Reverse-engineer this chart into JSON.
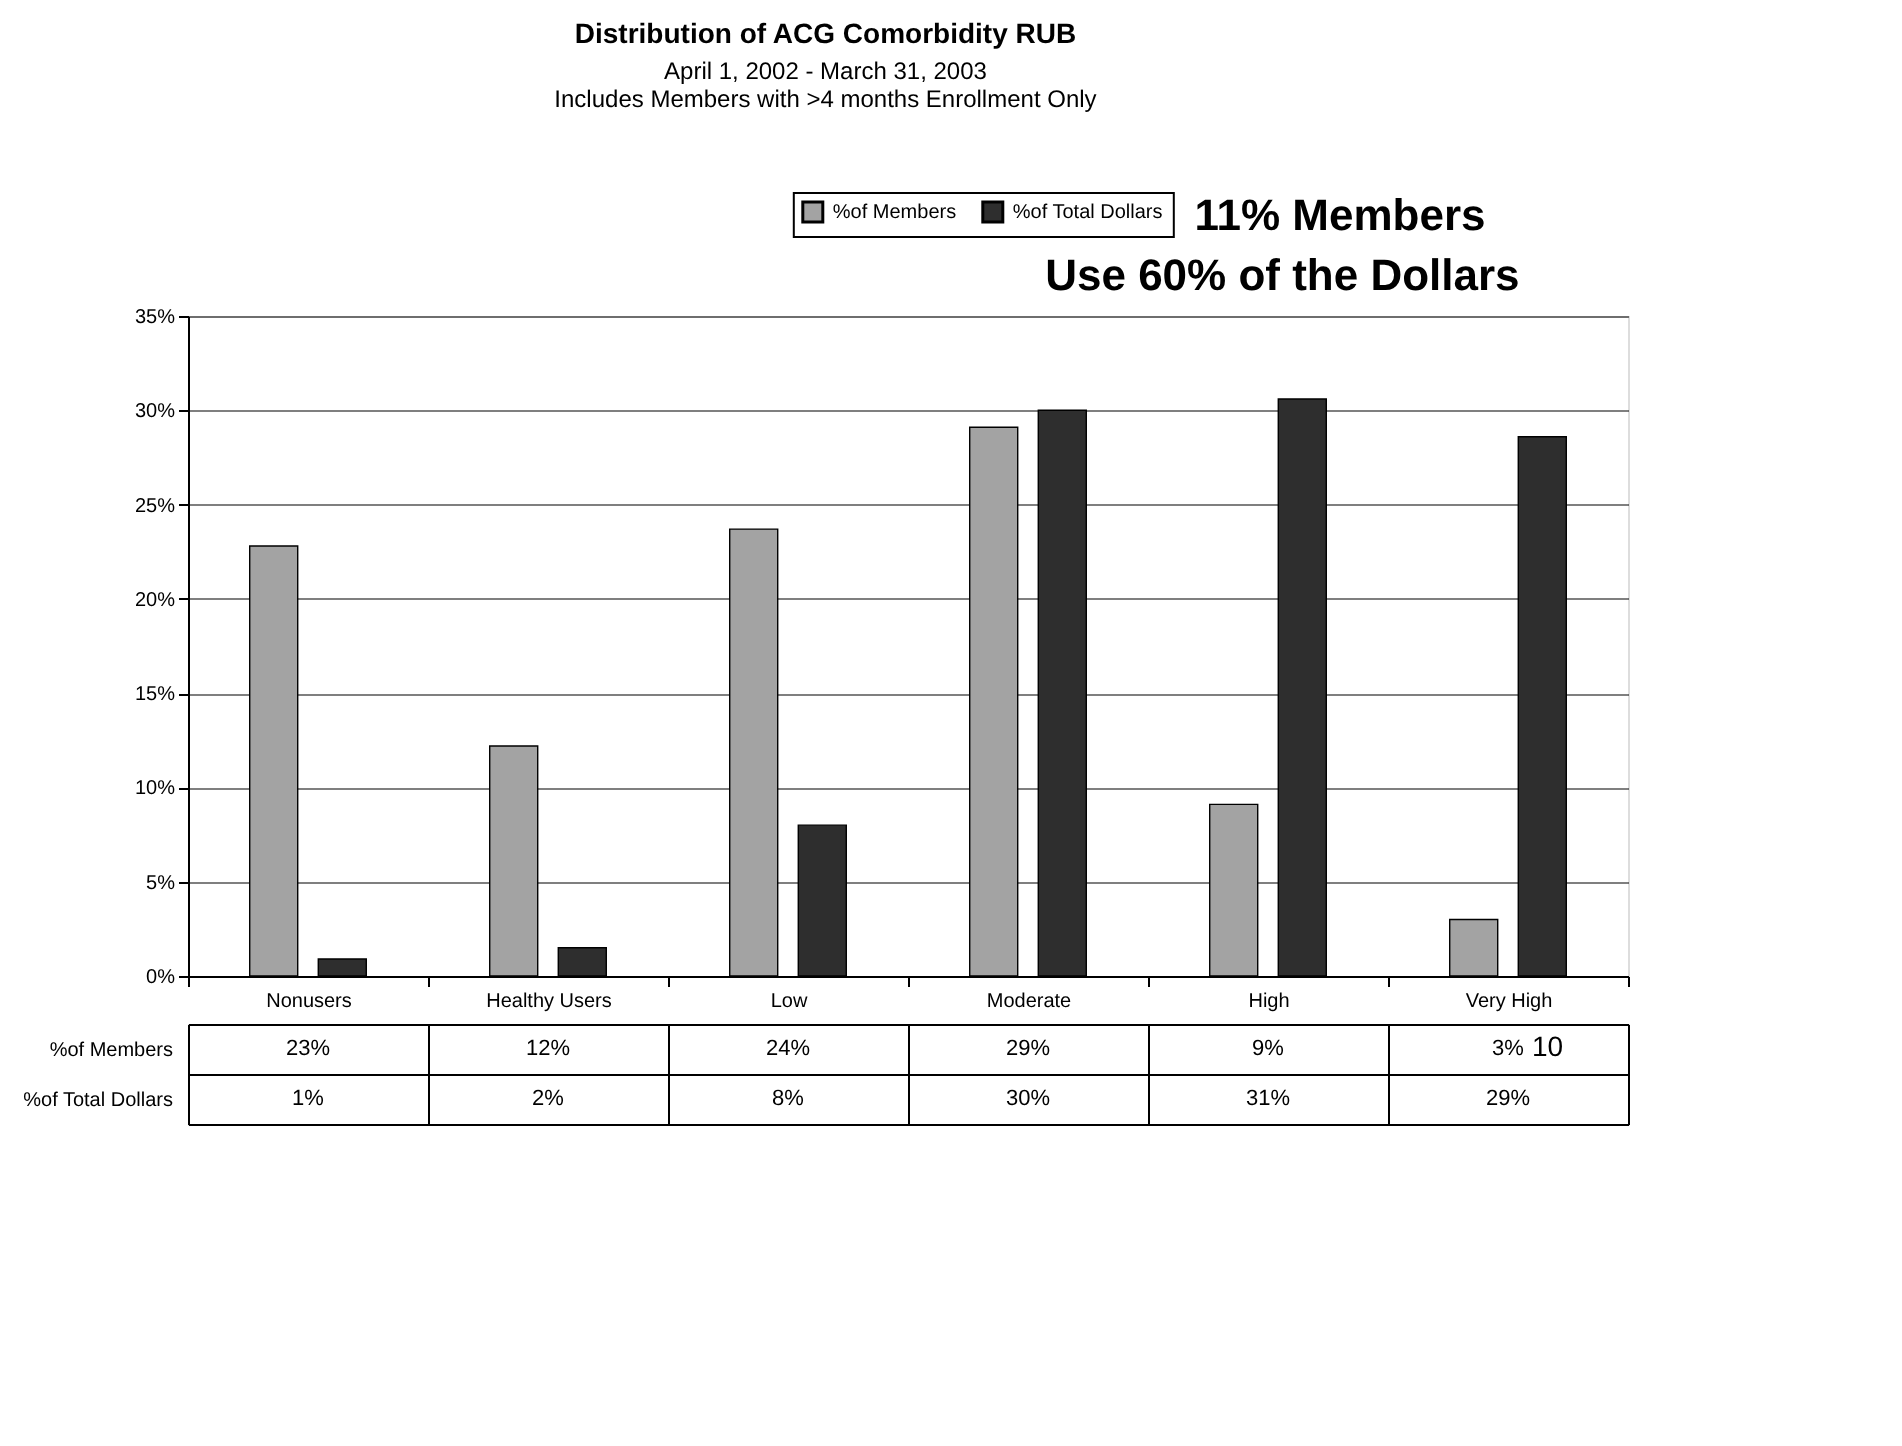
{
  "chart_data": {
    "type": "bar",
    "title": "Distribution of ACG Comorbidity RUB",
    "subtitle": "April 1, 2002 - March 31, 2003",
    "categories": [
      "Nonusers",
      "Healthy Users",
      "Low",
      "Moderate",
      "High",
      "Very High"
    ],
    "series": [
      {
        "name": "%of Members",
        "color": "#a3a3a3",
        "values": [
          22.8,
          12.2,
          23.7,
          29.1,
          9.1,
          3.0
        ],
        "value_labels": [
          "23%",
          "12%",
          "24%",
          "29%",
          "9%",
          "3%"
        ]
      },
      {
        "name": "%of Total Dollars",
        "color": "#2e2e2e",
        "values": [
          0.9,
          1.5,
          8.0,
          30.0,
          30.6,
          28.6
        ],
        "value_labels": [
          "1%",
          "2%",
          "8%",
          "30%",
          "31%",
          "29%"
        ]
      }
    ],
    "ylim": [
      0,
      35
    ],
    "yticks": [
      {
        "value": 0,
        "label": "0%"
      },
      {
        "value": 5,
        "label": "5%"
      },
      {
        "value": 10,
        "label": "10%"
      },
      {
        "value": 15,
        "label": "15%"
      },
      {
        "value": 20,
        "label": "20%"
      },
      {
        "value": 25,
        "label": "25%"
      },
      {
        "value": 30,
        "label": "30%"
      },
      {
        "value": 35,
        "label": "35%"
      }
    ],
    "grid": "y",
    "legend": "top right",
    "annotations": [
      "Includes Members with >4 months Enrollment Only",
      "11% Members",
      "Use 60% of the Dollars",
      "10"
    ]
  }
}
